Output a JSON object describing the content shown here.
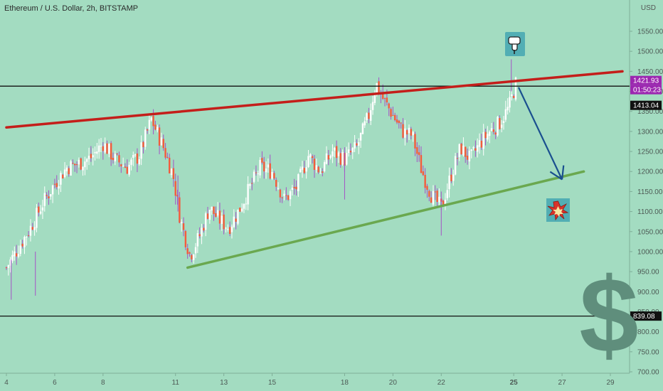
{
  "header": {
    "title": "Ethereum / U.S. Dollar, 2h, BITSTAMP",
    "currency_label": "USD"
  },
  "price_tags": {
    "last_price": "1421.93",
    "countdown": "01:50:23",
    "resistance_level": "1413.04",
    "support_level": "839.08"
  },
  "icons": {
    "pointer": "backhand-index-pointing-down-icon",
    "explosion": "collision-icon",
    "dollar": "dollar-sign-icon"
  },
  "chart_data": {
    "type": "candlestick",
    "title": "Ethereum / U.S. Dollar, 2h, BITSTAMP",
    "xlabel": "",
    "ylabel": "",
    "ylim": [
      700,
      1600
    ],
    "y_ticks": [
      700,
      750,
      800,
      850,
      900,
      950,
      1000,
      1050,
      1100,
      1150,
      1200,
      1250,
      1300,
      1350,
      1400,
      1450,
      1500,
      1550
    ],
    "x_tick_labels": [
      "4",
      "6",
      "8",
      "11",
      "13",
      "15",
      "18",
      "20",
      "22",
      "25",
      "27",
      "29"
    ],
    "price_path_x_days": [
      4,
      4.5,
      5.0,
      5.5,
      6.0,
      6.5,
      7.0,
      7.5,
      8.0,
      8.5,
      9.0,
      9.5,
      10.0,
      10.5,
      10.9,
      11.2,
      11.6,
      12.0,
      12.4,
      12.8,
      13.2,
      13.6,
      14.0,
      14.5,
      15.0,
      15.5,
      16.0,
      16.5,
      17.0,
      17.5,
      18.0,
      18.5,
      19.0,
      19.3,
      19.6,
      20.0,
      20.4,
      20.8,
      21.2,
      21.6,
      22.0,
      22.4,
      22.8,
      23.2,
      23.6,
      24.0,
      24.4,
      24.8,
      25.1
    ],
    "price_path_close": [
      960,
      1010,
      1060,
      1120,
      1170,
      1210,
      1220,
      1235,
      1270,
      1230,
      1210,
      1240,
      1330,
      1260,
      1190,
      1080,
      990,
      1040,
      1110,
      1080,
      1060,
      1100,
      1150,
      1210,
      1200,
      1130,
      1160,
      1240,
      1200,
      1250,
      1230,
      1260,
      1340,
      1420,
      1380,
      1340,
      1300,
      1290,
      1200,
      1140,
      1110,
      1190,
      1260,
      1230,
      1270,
      1300,
      1320,
      1360,
      1421.93
    ],
    "horizontal_levels": [
      1413.04,
      839.08
    ],
    "trendlines": [
      {
        "from": [
          4,
          1310
        ],
        "to": [
          29.5,
          1450
        ]
      },
      {
        "from": [
          11.5,
          960
        ],
        "to": [
          27.9,
          1200
        ]
      }
    ],
    "projection_arrow": {
      "from": [
        25.2,
        1410
      ],
      "to": [
        27,
        1180
      ]
    },
    "last_price": 1421.93,
    "grid": false,
    "legend": "none"
  }
}
